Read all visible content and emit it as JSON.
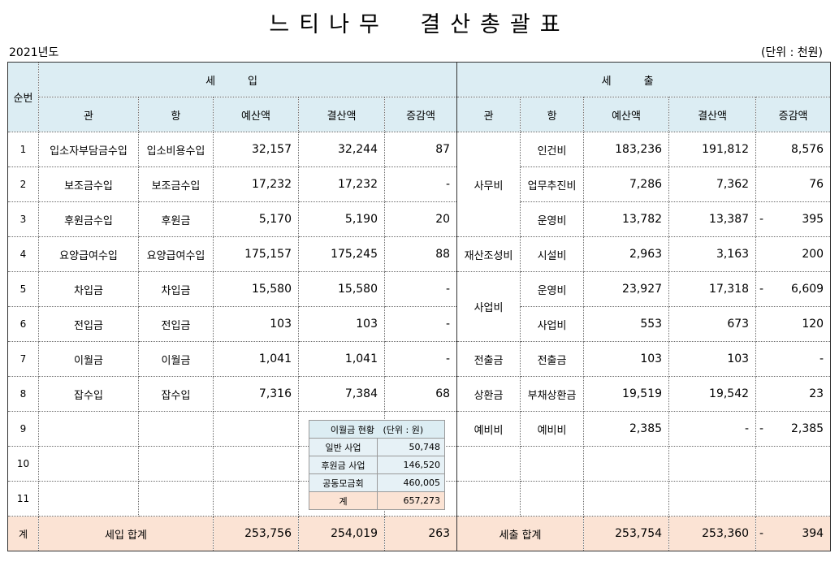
{
  "title": "느티나무 결산총괄표",
  "year": "2021년도",
  "unit": "(단위 : 천원)",
  "headers": {
    "seq": "순번",
    "income": "세입",
    "expense": "세출",
    "gwan": "관",
    "hang": "항",
    "budget": "예산액",
    "settle": "결산액",
    "diff": "증감액"
  },
  "income_rows": [
    {
      "no": "1",
      "gwan": "입소자부담금수입",
      "hang": "입소비용수입",
      "budget": "32,157",
      "settle": "32,244",
      "diff": "87"
    },
    {
      "no": "2",
      "gwan": "보조금수입",
      "hang": "보조금수입",
      "budget": "17,232",
      "settle": "17,232",
      "diff": "-"
    },
    {
      "no": "3",
      "gwan": "후원금수입",
      "hang": "후원금",
      "budget": "5,170",
      "settle": "5,190",
      "diff": "20"
    },
    {
      "no": "4",
      "gwan": "요양급여수입",
      "hang": "요양급여수입",
      "budget": "175,157",
      "settle": "175,245",
      "diff": "88"
    },
    {
      "no": "5",
      "gwan": "차입금",
      "hang": "차입금",
      "budget": "15,580",
      "settle": "15,580",
      "diff": "-"
    },
    {
      "no": "6",
      "gwan": "전입금",
      "hang": "전입금",
      "budget": "103",
      "settle": "103",
      "diff": "-"
    },
    {
      "no": "7",
      "gwan": "이월금",
      "hang": "이월금",
      "budget": "1,041",
      "settle": "1,041",
      "diff": "-"
    },
    {
      "no": "8",
      "gwan": "잡수입",
      "hang": "잡수입",
      "budget": "7,316",
      "settle": "7,384",
      "diff": "68"
    },
    {
      "no": "9"
    },
    {
      "no": "10"
    },
    {
      "no": "11"
    }
  ],
  "expense_gwan": {
    "office": "사무비",
    "asset": "재산조성비",
    "project": "사업비",
    "transfer": "전출금",
    "repay": "상환금",
    "reserve": "예비비"
  },
  "expense_rows": [
    {
      "hang": "인건비",
      "budget": "183,236",
      "settle": "191,812",
      "diff": "8,576"
    },
    {
      "hang": "업무추진비",
      "budget": "7,286",
      "settle": "7,362",
      "diff": "76"
    },
    {
      "hang": "운영비",
      "budget": "13,782",
      "settle": "13,387",
      "diff_sign": "-",
      "diff": "395"
    },
    {
      "hang": "시설비",
      "budget": "2,963",
      "settle": "3,163",
      "diff": "200"
    },
    {
      "hang": "운영비",
      "budget": "23,927",
      "settle": "17,318",
      "diff_sign": "-",
      "diff": "6,609"
    },
    {
      "hang": "사업비",
      "budget": "553",
      "settle": "673",
      "diff": "120"
    },
    {
      "hang": "전출금",
      "budget": "103",
      "settle": "103",
      "diff": "-"
    },
    {
      "hang": "부채상환금",
      "budget": "19,519",
      "settle": "19,542",
      "diff": "23"
    },
    {
      "hang": "예비비",
      "budget": "2,385",
      "settle_sign": "-",
      "settle": "",
      "diff_sign": "-",
      "diff": "2,385"
    }
  ],
  "totals": {
    "label": "계",
    "income_label": "세입 합계",
    "income_budget": "253,756",
    "income_settle": "254,019",
    "income_diff": "263",
    "expense_label": "세출 합계",
    "expense_budget": "253,754",
    "expense_settle": "253,360",
    "expense_diff_sign": "-",
    "expense_diff": "394"
  },
  "carryover": {
    "title": "이월금 현황",
    "unit": "(단위 : 원)",
    "rows": [
      {
        "label": "일반 사업",
        "value": "50,748"
      },
      {
        "label": "후원금 사업",
        "value": "146,520"
      },
      {
        "label": "공동모금회",
        "value": "460,005"
      }
    ],
    "total_label": "계",
    "total_value": "657,273"
  }
}
